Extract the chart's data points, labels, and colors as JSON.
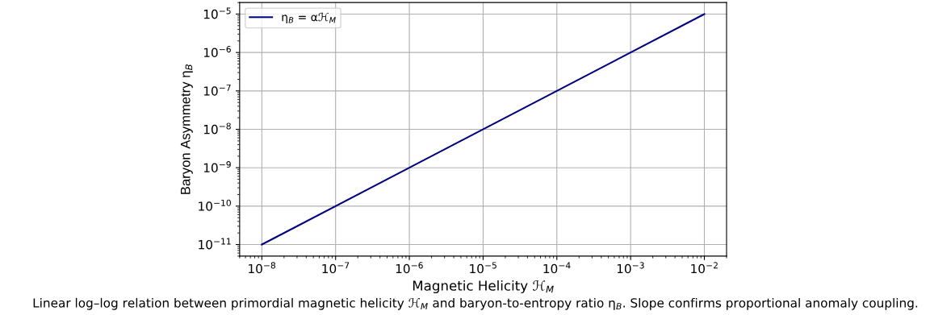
{
  "chart_data": {
    "type": "line",
    "xlabel": "Magnetic Helicity ℋ$_{M}$",
    "ylabel": "Baryon Asymmetry η$_{B}$",
    "series": [
      {
        "name": "η$_{B}$ = αℋ$_{M}$",
        "color": "#000080",
        "x": [
          1e-08,
          0.01
        ],
        "values": [
          1e-11,
          1e-05
        ]
      }
    ],
    "log": "xy",
    "xlim": [
      5e-09,
      0.02
    ],
    "ylim": [
      5e-12,
      2e-05
    ],
    "xticks": [
      {
        "value": 1e-08,
        "label": "10$^{−8}$"
      },
      {
        "value": 1e-07,
        "label": "10$^{−7}$"
      },
      {
        "value": 1e-06,
        "label": "10$^{−6}$"
      },
      {
        "value": 1e-05,
        "label": "10$^{−5}$"
      },
      {
        "value": 0.0001,
        "label": "10$^{−4}$"
      },
      {
        "value": 0.001,
        "label": "10$^{−3}$"
      },
      {
        "value": 0.01,
        "label": "10$^{−2}$"
      }
    ],
    "yticks": [
      {
        "value": 1e-11,
        "label": "10$^{−11}$"
      },
      {
        "value": 1e-10,
        "label": "10$^{−10}$"
      },
      {
        "value": 1e-09,
        "label": "10$^{−9}$"
      },
      {
        "value": 1e-08,
        "label": "10$^{−8}$"
      },
      {
        "value": 1e-07,
        "label": "10$^{−7}$"
      },
      {
        "value": 1e-06,
        "label": "10$^{−6}$"
      },
      {
        "value": 1e-05,
        "label": "10$^{−5}$"
      }
    ],
    "grid": true,
    "legend": "top left",
    "marker": "none",
    "line_style": "solid",
    "annotations": [
      "Linear log–log relation between primordial magnetic helicity ℋ$_{M}$ and baryon-to-entropy ratio η$_{B}$. Slope confirms proportional anomaly coupling."
    ]
  }
}
